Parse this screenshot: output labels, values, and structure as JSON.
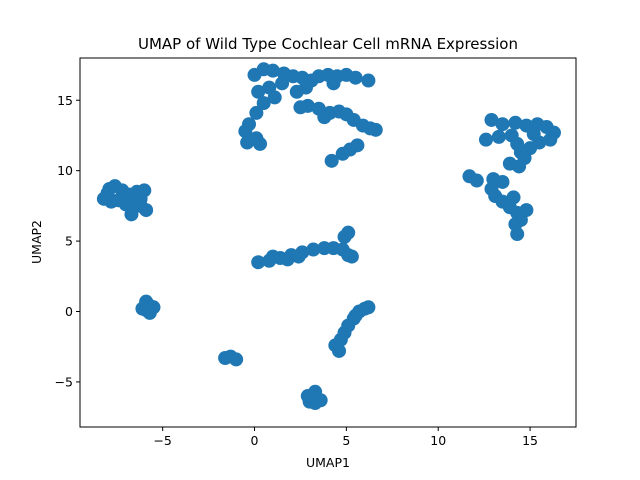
{
  "chart_data": {
    "type": "scatter",
    "title": "UMAP of Wild Type Cochlear Cell mRNA Expression",
    "xlabel": "UMAP1",
    "ylabel": "UMAP2",
    "xlim": [
      -9.5,
      17.5
    ],
    "ylim": [
      -8.2,
      18.0
    ],
    "xticks": [
      -5,
      0,
      5,
      10,
      15
    ],
    "xtick_labels": [
      "−5",
      "0",
      "5",
      "10",
      "15"
    ],
    "yticks": [
      -5,
      0,
      5,
      10,
      15
    ],
    "ytick_labels": [
      "−5",
      "0",
      "5",
      "10",
      "15"
    ],
    "grid": false,
    "legend": "none",
    "marker_color": "#1f77b4",
    "series": [
      {
        "values": [
          [
            -8.0,
            8.4
          ],
          [
            -7.6,
            8.9
          ],
          [
            -7.2,
            8.6
          ],
          [
            -6.8,
            8.3
          ],
          [
            -6.4,
            8.5
          ],
          [
            -6.2,
            8.0
          ],
          [
            -6.0,
            8.6
          ],
          [
            -7.8,
            7.8
          ],
          [
            -7.4,
            7.9
          ],
          [
            -7.0,
            7.6
          ],
          [
            -6.6,
            7.7
          ],
          [
            -6.2,
            7.5
          ],
          [
            -5.9,
            7.2
          ],
          [
            -6.7,
            6.9
          ],
          [
            -8.2,
            8.0
          ],
          [
            -7.9,
            8.7
          ],
          [
            -5.9,
            0.7
          ],
          [
            -5.7,
            0.4
          ],
          [
            -5.5,
            0.3
          ],
          [
            -5.9,
            0.1
          ],
          [
            -6.1,
            0.2
          ],
          [
            -5.7,
            -0.1
          ],
          [
            -1.6,
            -3.3
          ],
          [
            -1.3,
            -3.2
          ],
          [
            -1.0,
            -3.4
          ],
          [
            0.2,
            3.5
          ],
          [
            0.8,
            3.6
          ],
          [
            1.4,
            3.8
          ],
          [
            2.0,
            4.0
          ],
          [
            2.6,
            4.2
          ],
          [
            3.2,
            4.4
          ],
          [
            3.8,
            4.5
          ],
          [
            4.3,
            4.5
          ],
          [
            4.8,
            4.4
          ],
          [
            5.1,
            4.0
          ],
          [
            5.3,
            3.9
          ],
          [
            4.9,
            5.3
          ],
          [
            5.1,
            5.6
          ],
          [
            1.0,
            3.9
          ],
          [
            1.8,
            3.7
          ],
          [
            2.4,
            3.9
          ],
          [
            3.2,
            -6.1
          ],
          [
            3.0,
            -6.4
          ],
          [
            3.3,
            -6.5
          ],
          [
            3.6,
            -6.3
          ],
          [
            2.9,
            -6.0
          ],
          [
            3.3,
            -5.7
          ],
          [
            4.6,
            -2.8
          ],
          [
            4.4,
            -2.4
          ],
          [
            4.7,
            -2.0
          ],
          [
            4.9,
            -1.5
          ],
          [
            5.1,
            -1.0
          ],
          [
            5.4,
            -0.5
          ],
          [
            5.7,
            0.0
          ],
          [
            6.0,
            0.2
          ],
          [
            6.2,
            0.3
          ],
          [
            5.5,
            -0.3
          ],
          [
            0.0,
            16.8
          ],
          [
            0.5,
            17.2
          ],
          [
            1.0,
            17.1
          ],
          [
            1.6,
            16.9
          ],
          [
            2.1,
            16.7
          ],
          [
            2.6,
            16.6
          ],
          [
            3.1,
            16.4
          ],
          [
            1.5,
            16.2
          ],
          [
            0.8,
            15.9
          ],
          [
            0.2,
            15.6
          ],
          [
            0.5,
            14.8
          ],
          [
            0.1,
            14.1
          ],
          [
            -0.3,
            13.3
          ],
          [
            -0.5,
            12.8
          ],
          [
            0.1,
            12.3
          ],
          [
            -0.4,
            12.0
          ],
          [
            0.3,
            11.9
          ],
          [
            1.1,
            15.2
          ],
          [
            2.3,
            15.6
          ],
          [
            2.8,
            15.9
          ],
          [
            3.5,
            16.7
          ],
          [
            4.0,
            16.8
          ],
          [
            4.5,
            16.7
          ],
          [
            5.0,
            16.8
          ],
          [
            5.5,
            16.6
          ],
          [
            6.2,
            16.4
          ],
          [
            4.3,
            16.2
          ],
          [
            2.9,
            14.6
          ],
          [
            3.5,
            14.4
          ],
          [
            4.1,
            14.1
          ],
          [
            4.6,
            14.2
          ],
          [
            5.0,
            14.0
          ],
          [
            3.8,
            13.8
          ],
          [
            5.4,
            13.6
          ],
          [
            5.9,
            13.2
          ],
          [
            6.3,
            13.0
          ],
          [
            6.6,
            12.9
          ],
          [
            5.6,
            11.8
          ],
          [
            5.2,
            11.5
          ],
          [
            4.8,
            11.2
          ],
          [
            4.2,
            10.7
          ],
          [
            2.5,
            14.5
          ],
          [
            12.9,
            13.6
          ],
          [
            13.5,
            13.3
          ],
          [
            14.2,
            13.4
          ],
          [
            14.8,
            13.2
          ],
          [
            15.4,
            13.3
          ],
          [
            15.9,
            13.1
          ],
          [
            16.3,
            12.7
          ],
          [
            16.1,
            12.2
          ],
          [
            15.5,
            12.0
          ],
          [
            15.0,
            11.6
          ],
          [
            14.5,
            11.3
          ],
          [
            15.2,
            12.6
          ],
          [
            14.0,
            12.5
          ],
          [
            13.3,
            12.4
          ],
          [
            12.6,
            12.2
          ],
          [
            14.3,
            11.9
          ],
          [
            14.7,
            10.9
          ],
          [
            14.4,
            10.3
          ],
          [
            13.9,
            10.5
          ],
          [
            11.7,
            9.6
          ],
          [
            12.1,
            9.3
          ],
          [
            13.0,
            9.4
          ],
          [
            13.5,
            9.2
          ],
          [
            12.9,
            8.7
          ],
          [
            13.1,
            8.2
          ],
          [
            13.5,
            7.8
          ],
          [
            13.9,
            7.4
          ],
          [
            14.3,
            7.0
          ],
          [
            14.8,
            7.2
          ],
          [
            14.5,
            6.5
          ],
          [
            14.2,
            6.2
          ],
          [
            14.3,
            5.5
          ],
          [
            14.1,
            8.1
          ]
        ]
      }
    ]
  }
}
